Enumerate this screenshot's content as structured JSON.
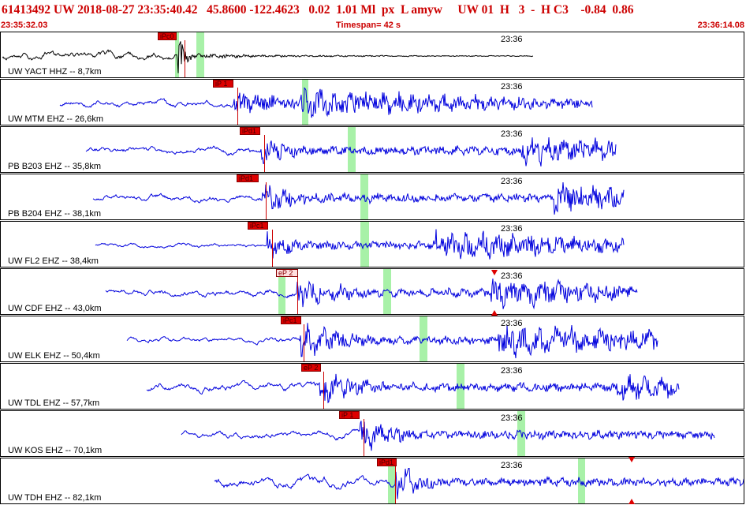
{
  "header": {
    "title": "61413492 UW 2018-08-27 23:35:40.42   45.8600 -122.4623   0.02  1.01 Ml  px  L amyw     UW 01  H   3  -  H C3    -0.84  0.86",
    "start_time": "23:35:32.03",
    "timespan": "Timespan=  42 s",
    "end_time": "23:36:14.08"
  },
  "tick_label": "23:36",
  "colors": {
    "trace_first": "#000000",
    "trace": "#0000dd",
    "pick": "#dd0000",
    "window": "#99ee99"
  },
  "panels": [
    {
      "label": "UW YACT HHZ -- 8,7km",
      "pick": "iPc0",
      "color": "#000000",
      "pick_style": "solid"
    },
    {
      "label": "UW MTM EHZ -- 26,6km",
      "pick": "iP 1",
      "color": "#0000dd",
      "pick_style": "solid"
    },
    {
      "label": "PB B203 EHZ -- 35,8km",
      "pick": "iPd1",
      "color": "#0000dd",
      "pick_style": "solid"
    },
    {
      "label": "PB B204 EHZ -- 38,1km",
      "pick": "iPd1",
      "color": "#0000dd",
      "pick_style": "solid"
    },
    {
      "label": "UW FL2 EHZ -- 38,4km",
      "pick": "iPc1",
      "color": "#0000dd",
      "pick_style": "solid"
    },
    {
      "label": "UW CDF EHZ -- 43,0km",
      "pick": "eP 2",
      "color": "#0000dd",
      "pick_style": "light"
    },
    {
      "label": "UW ELK EHZ -- 50,4km",
      "pick": "iPc1",
      "color": "#0000dd",
      "pick_style": "solid"
    },
    {
      "label": "UW TDL EHZ -- 57,7km",
      "pick": "eP 2",
      "color": "#0000dd",
      "pick_style": "solid"
    },
    {
      "label": "UW KOS EHZ -- 70,1km",
      "pick": "iP 1",
      "color": "#0000dd",
      "pick_style": "solid"
    },
    {
      "label": "UW TDH EHZ -- 82,1km",
      "pick": "iPd1",
      "color": "#0000dd",
      "pick_style": "solid"
    }
  ]
}
